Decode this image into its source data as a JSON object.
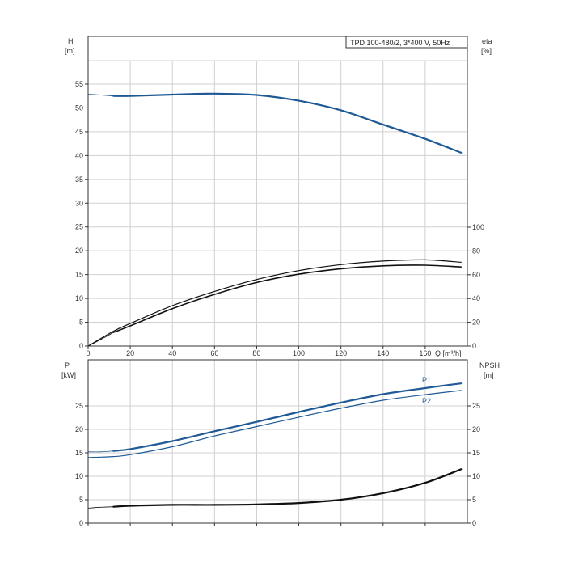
{
  "title": "TPD 100-480/2, 3*400 V, 50Hz",
  "colors": {
    "head": "#1f5a96",
    "power": "#1f5a96",
    "eff": "#111111",
    "npsh": "#111111",
    "grid": "#d0d0d0"
  },
  "chart_data": [
    {
      "type": "line",
      "panel": "top",
      "x_label": "Q [m³/h]",
      "x_ticks": [
        "0",
        "20",
        "40",
        "60",
        "80",
        "100",
        "120",
        "140",
        "160"
      ],
      "xlim": [
        0,
        180
      ],
      "left_axis": {
        "label_top": "H",
        "label_unit": "[m]",
        "ticks": [
          "0",
          "5",
          "10",
          "15",
          "20",
          "25",
          "30",
          "35",
          "40",
          "45",
          "50",
          "55"
        ],
        "ylim": [
          0,
          60
        ]
      },
      "right_axis": {
        "label_top": "eta",
        "label_unit": "[%]",
        "ticks": [
          "0",
          "20",
          "40",
          "60",
          "80",
          "100"
        ],
        "ylim": [
          0,
          180
        ]
      },
      "grid": true,
      "series": [
        {
          "key": "H",
          "axis": "left",
          "color": "#1f5a96",
          "width": 2.2,
          "x": [
            12,
            20,
            40,
            60,
            80,
            100,
            120,
            140,
            160,
            177
          ],
          "y": [
            52.5,
            52.5,
            52.8,
            53.0,
            52.7,
            51.5,
            49.5,
            46.5,
            43.5,
            40.6
          ]
        },
        {
          "key": "H-extrapolated",
          "axis": "left",
          "color": "#1f5a96",
          "width": 0.8,
          "x": [
            0,
            6,
            12
          ],
          "y": [
            52.9,
            52.7,
            52.5
          ]
        },
        {
          "key": "eta",
          "axis": "right",
          "color": "#111111",
          "width": 1.6,
          "x": [
            12,
            20,
            40,
            60,
            80,
            100,
            120,
            140,
            160,
            177
          ],
          "y": [
            11.5,
            17.0,
            31.5,
            43.5,
            53.5,
            60.5,
            65.0,
            67.5,
            68.0,
            66.5
          ]
        },
        {
          "key": "eta-2",
          "axis": "right",
          "color": "#111111",
          "width": 1.2,
          "x": [
            0,
            12,
            20,
            40,
            60,
            80,
            100,
            120,
            140,
            160,
            177
          ],
          "y": [
            0,
            12.5,
            19.0,
            34.0,
            46.0,
            56.0,
            63.5,
            68.5,
            71.5,
            72.5,
            70.5
          ]
        },
        {
          "key": "eta-extrapolated",
          "axis": "right",
          "color": "#111111",
          "width": 0.8,
          "x": [
            0,
            6,
            12
          ],
          "y": [
            0,
            5.5,
            11.5
          ]
        }
      ]
    },
    {
      "type": "line",
      "panel": "bottom",
      "xlim": [
        0,
        180
      ],
      "left_axis": {
        "label_top": "P",
        "label_unit": "[kW]",
        "ticks": [
          "0",
          "5",
          "10",
          "15",
          "20",
          "25"
        ],
        "ylim": [
          0,
          35
        ]
      },
      "right_axis": {
        "label_top": "NPSH",
        "label_unit": "[m]",
        "ticks": [
          "0",
          "5",
          "10",
          "15",
          "20",
          "25"
        ],
        "ylim": [
          0,
          35
        ]
      },
      "grid": true,
      "series": [
        {
          "key": "P1",
          "label": "P1",
          "axis": "left",
          "color": "#1f5a96",
          "width": 2.2,
          "x": [
            12,
            20,
            40,
            60,
            80,
            100,
            120,
            140,
            160,
            177
          ],
          "y": [
            15.4,
            15.8,
            17.5,
            19.6,
            21.6,
            23.7,
            25.7,
            27.5,
            28.8,
            29.8
          ]
        },
        {
          "key": "P1-extrapolated",
          "axis": "left",
          "color": "#1f5a96",
          "width": 0.8,
          "x": [
            0,
            6,
            12
          ],
          "y": [
            15.2,
            15.2,
            15.4
          ]
        },
        {
          "key": "P2",
          "label": "P2",
          "axis": "left",
          "color": "#1f5a96",
          "width": 1.2,
          "x": [
            0,
            12,
            20,
            40,
            60,
            80,
            100,
            120,
            140,
            160,
            177
          ],
          "y": [
            14.0,
            14.2,
            14.6,
            16.3,
            18.6,
            20.6,
            22.6,
            24.5,
            26.2,
            27.4,
            28.3
          ]
        },
        {
          "key": "NPSH",
          "axis": "right",
          "color": "#111111",
          "width": 2.2,
          "x": [
            12,
            20,
            40,
            60,
            80,
            100,
            120,
            140,
            160,
            177
          ],
          "y": [
            3.5,
            3.7,
            3.9,
            3.9,
            4.0,
            4.3,
            5.0,
            6.4,
            8.6,
            11.5
          ]
        },
        {
          "key": "NPSH-extrapolated",
          "axis": "right",
          "color": "#111111",
          "width": 0.8,
          "x": [
            0,
            6,
            12
          ],
          "y": [
            3.2,
            3.4,
            3.5
          ]
        }
      ]
    }
  ]
}
